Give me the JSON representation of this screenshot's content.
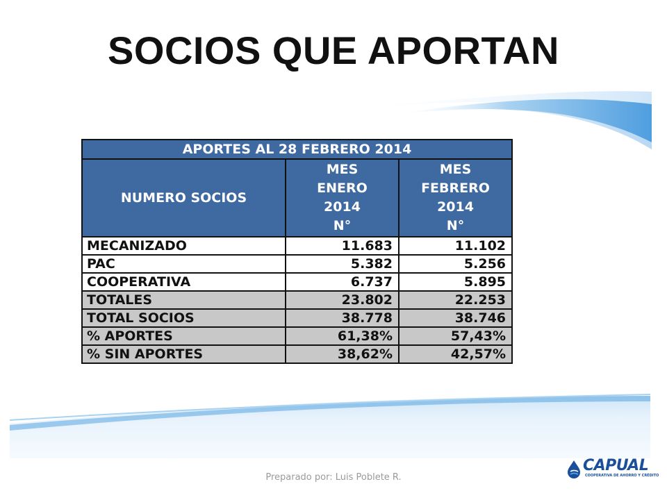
{
  "slide": {
    "title": "SOCIOS QUE APORTAN",
    "footer": "Preparado por: Luis Poblete R."
  },
  "table": {
    "banner": "APORTES AL 28 FEBRERO 2014",
    "row_header_label": "NUMERO SOCIOS",
    "columns": [
      {
        "line1": "MES",
        "line2": "ENERO",
        "line3": "2014",
        "line4": "N°"
      },
      {
        "line1": "MES",
        "line2": "FEBRERO",
        "line3": "2014",
        "line4": "N°"
      }
    ],
    "rows": [
      {
        "label": "MECANIZADO",
        "enero": "11.683",
        "febrero": "11.102"
      },
      {
        "label": "PAC",
        "enero": "5.382",
        "febrero": "5.256"
      },
      {
        "label": "COOPERATIVA",
        "enero": "6.737",
        "febrero": "5.895"
      },
      {
        "label": "TOTALES",
        "enero": "23.802",
        "febrero": "22.253"
      },
      {
        "label": "TOTAL SOCIOS",
        "enero": "38.778",
        "febrero": "38.746"
      },
      {
        "label": "% APORTES",
        "enero": "61,38%",
        "febrero": "57,43%"
      },
      {
        "label": "% SIN APORTES",
        "enero": "38,62%",
        "febrero": "42,57%"
      }
    ]
  },
  "logo": {
    "name": "CAPUAL",
    "tagline": "COOPERATIVA DE AHORRO Y CRÉDITO",
    "brand_color": "#1b4f9c"
  },
  "colors": {
    "header_fill": "#3f6aa1",
    "totals_fill": "#c8c8c8",
    "wave_blue": "#5aa6e0"
  }
}
